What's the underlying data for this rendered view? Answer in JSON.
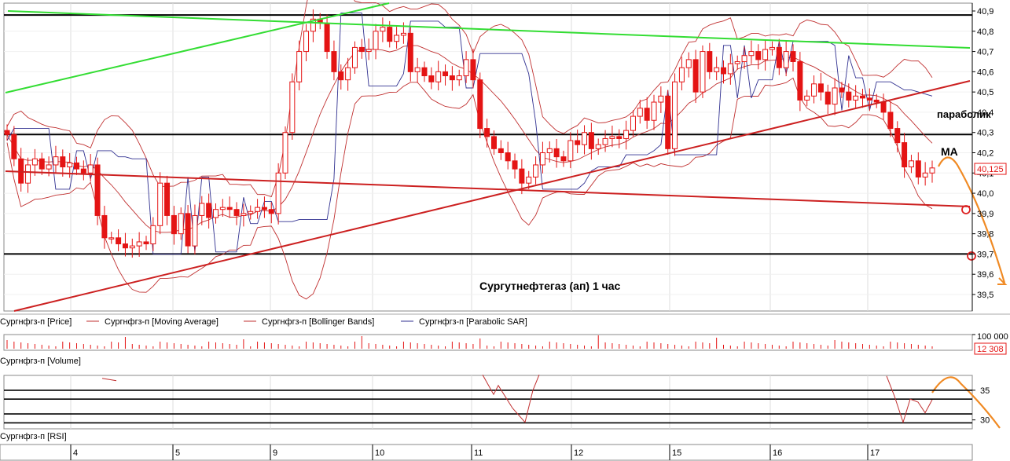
{
  "chart_data": [
    {
      "type": "candlestick",
      "panel": "price",
      "title": "Сургутнефтегаз (ап)    1 час",
      "annotation_parabolic": "параболик",
      "annotation_ma": "MA",
      "current_value_label": "40,125",
      "ylim": [
        39.4,
        40.95
      ],
      "yticks": [
        "40,9",
        "40,8",
        "40,7",
        "40,6",
        "40,5",
        "40,4",
        "40,3",
        "40,2",
        "40,1",
        "40,0",
        "39,9",
        "39,8",
        "39,7",
        "39,6",
        "39,5"
      ],
      "ytick_values": [
        40.9,
        40.8,
        40.7,
        40.6,
        40.5,
        40.4,
        40.3,
        40.2,
        40.1,
        40.0,
        39.9,
        39.8,
        39.7,
        39.6,
        39.5
      ],
      "series": [
        {
          "name": "Сургнфгз-п [Price]",
          "color": "#e41414",
          "values": [
            40.29,
            40.17,
            40.05,
            40.14,
            40.17,
            40.12,
            40.14,
            40.18,
            40.13,
            40.15,
            40.12,
            40.1,
            40.14,
            39.89,
            39.78,
            39.78,
            39.75,
            39.73,
            39.74,
            39.76,
            39.75,
            39.84,
            40.05,
            39.89,
            39.8,
            39.9,
            39.74,
            39.89,
            39.95,
            39.88,
            39.92,
            39.93,
            39.92,
            39.89,
            39.9,
            39.91,
            39.93,
            39.92,
            39.9,
            40.1,
            40.3,
            40.55,
            40.7,
            40.8,
            40.86,
            40.84,
            40.7,
            40.6,
            40.56,
            40.62,
            40.72,
            40.7,
            40.71,
            40.8,
            40.82,
            40.75,
            40.78,
            40.79,
            40.6,
            40.62,
            40.58,
            40.55,
            40.6,
            40.58,
            40.56,
            40.58,
            40.66,
            40.56,
            40.32,
            40.28,
            40.22,
            40.2,
            40.16,
            40.12,
            40.05,
            40.08,
            40.14,
            40.2,
            40.22,
            40.18,
            40.16,
            40.26,
            40.24,
            40.3,
            40.22,
            40.24,
            40.27,
            40.28,
            40.27,
            40.31,
            40.38,
            40.42,
            40.36,
            40.45,
            40.48,
            40.22,
            40.55,
            40.62,
            40.66,
            40.5,
            40.7,
            40.6,
            40.62,
            40.59,
            40.64,
            40.65,
            40.68,
            40.7,
            40.66,
            40.71,
            40.72,
            40.62,
            40.7,
            40.65,
            40.46,
            40.48,
            40.54,
            40.5,
            40.44,
            40.52,
            40.5,
            40.46,
            40.48,
            40.47,
            40.46,
            40.45,
            40.4,
            40.32,
            40.25,
            40.13,
            40.16,
            40.08,
            40.1,
            40.125
          ]
        },
        {
          "name": "Сургнфгз-п [Moving Average]",
          "color": "#c03030"
        },
        {
          "name": "Сургнфгз-п [Bollinger Bands]",
          "color": "#c03030"
        },
        {
          "name": "Сургнфгз-п [Parabolic SAR]",
          "color": "#303090"
        }
      ],
      "trendlines": [
        {
          "color": "#33dd33"
        },
        {
          "color": "#33dd33"
        },
        {
          "color": "#cc2020"
        },
        {
          "color": "#cc2020"
        }
      ],
      "horizontal_levels": [
        40.88,
        40.29,
        39.7
      ]
    },
    {
      "type": "bar",
      "panel": "volume",
      "series": [
        {
          "name": "Сургнфгз-п [Volume]",
          "color": "#e41414"
        }
      ],
      "yticks": [
        "100 000"
      ],
      "current_value_label": "12 308"
    },
    {
      "type": "line",
      "panel": "rsi",
      "series": [
        {
          "name": "Сургнфгз-п [RSI]",
          "color": "#c03030"
        }
      ],
      "yticks": [
        "35",
        "30"
      ],
      "ytick_values": [
        35,
        30
      ],
      "ylim": [
        28.5,
        37.5
      ],
      "levels": [
        35.0,
        33.5,
        31.0,
        29.5
      ]
    }
  ],
  "x_axis": {
    "categories": [
      "4",
      "5",
      "9",
      "10",
      "11",
      "12",
      "15",
      "16",
      "17"
    ]
  },
  "colors": {
    "candle": "#e41414",
    "ma": "#c03030",
    "sar": "#303090",
    "green_line": "#33dd33",
    "red_line": "#cc2020",
    "level": "#000000",
    "forecast": "#f08a24",
    "grid": "#dddddd"
  }
}
